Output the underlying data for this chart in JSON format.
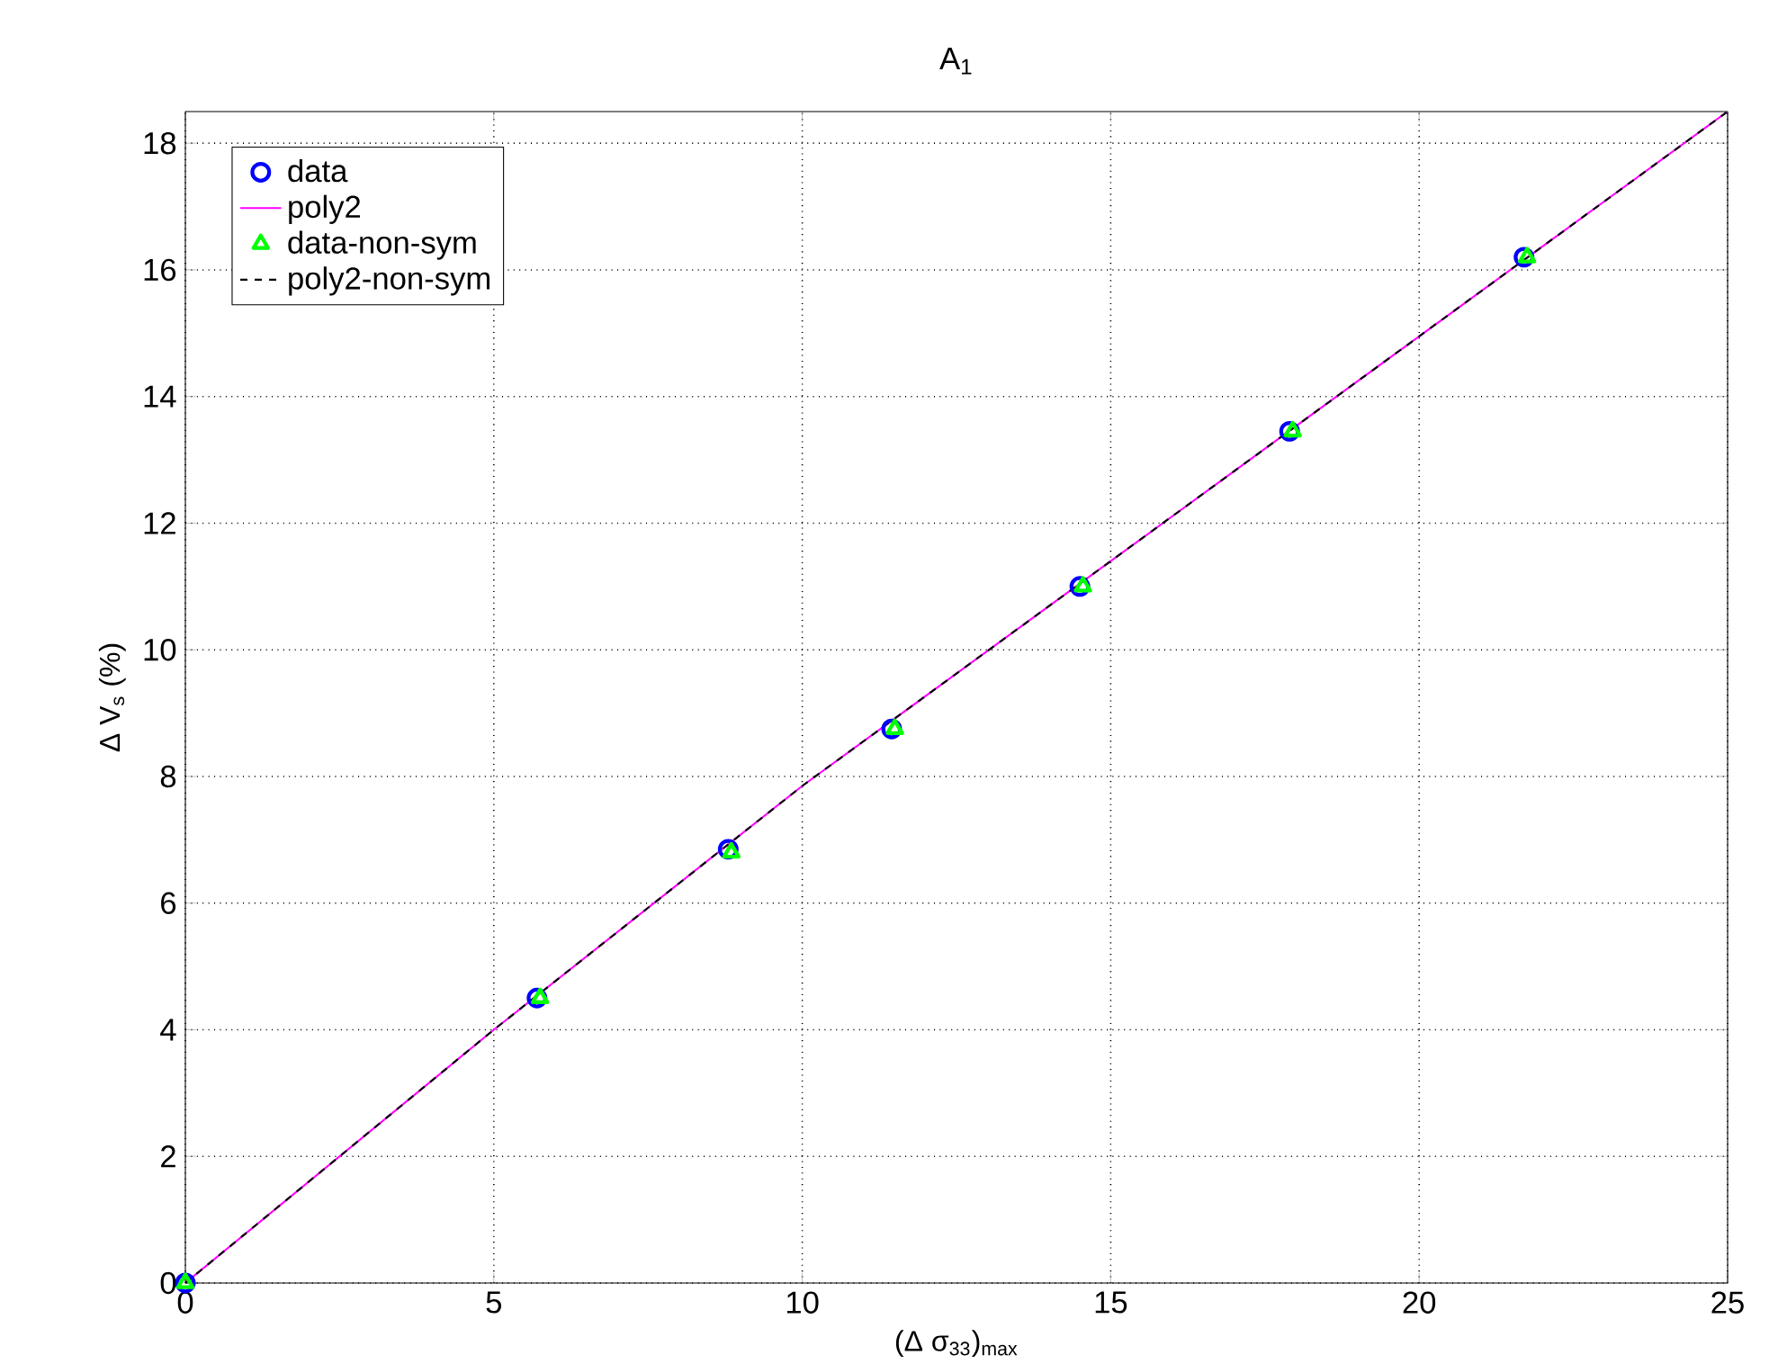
{
  "chart_data": {
    "type": "scatter",
    "title": "A$_{1}$",
    "xlabel": "(Δ σ$_{33}$)$_{max}$",
    "ylabel": "Δ V$_{s}$ (%)",
    "xlim": [
      0,
      25
    ],
    "ylim": [
      0,
      18.5
    ],
    "xticks": [
      0,
      5,
      10,
      15,
      20,
      25
    ],
    "yticks": [
      0,
      2,
      4,
      6,
      8,
      10,
      12,
      14,
      16,
      18
    ],
    "grid": true,
    "legend": "top left",
    "series": [
      {
        "name": "data",
        "color": "#0000ff",
        "marker": "circle",
        "x": [
          0,
          5.7,
          8.8,
          11.45,
          14.5,
          17.9,
          21.7
        ],
        "values": [
          0,
          4.5,
          6.85,
          8.75,
          11.0,
          13.45,
          16.2
        ]
      },
      {
        "name": "poly2",
        "type": "line",
        "color": "#ff00ff",
        "marker": "none",
        "line_style": "solid",
        "x": [
          0,
          5,
          10,
          15,
          20,
          25
        ],
        "values": [
          0,
          4.0,
          7.85,
          11.4,
          14.95,
          18.5
        ]
      },
      {
        "name": "data-non-sym",
        "color": "#00ff00",
        "marker": "triangle",
        "x": [
          0,
          5.75,
          8.85,
          11.5,
          14.55,
          17.95,
          21.75
        ],
        "values": [
          0,
          4.5,
          6.8,
          8.75,
          11.0,
          13.45,
          16.2
        ]
      },
      {
        "name": "poly2-non-sym",
        "type": "line",
        "color": "#000000",
        "marker": "none",
        "line_style": "dashed",
        "x": [
          0,
          5,
          10,
          15,
          20,
          25
        ],
        "values": [
          0,
          4.0,
          7.85,
          11.4,
          14.95,
          18.5
        ]
      }
    ]
  }
}
